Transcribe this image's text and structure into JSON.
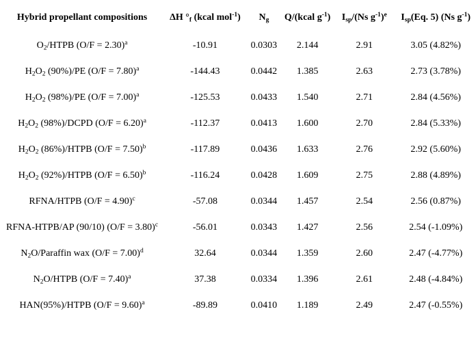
{
  "colors": {
    "background": "#ffffff",
    "text": "#000000"
  },
  "table": {
    "headers": [
      "Hybrid propellant compositions",
      "ΔH °~f~ (kcal mol^-1^)",
      "N~g~",
      "Q/(kcal g^-1^)",
      "I~sp~/(Ns g^-1^)^e^",
      "I~sp~(Eq. 5) (Ns g^-1^)"
    ],
    "rows": [
      {
        "cells": [
          "O~2~/HTPB (O/F = 2.30)^a^",
          "-10.91",
          "0.0303",
          "2.144",
          "2.91",
          "3.05 (4.82%)"
        ]
      },
      {
        "cells": [
          "H~2~O~2~ (90%)/PE (O/F = 7.80)^a^",
          "-144.43",
          "0.0442",
          "1.385",
          "2.63",
          "2.73 (3.78%)"
        ]
      },
      {
        "cells": [
          "H~2~O~2~ (98%)/PE (O/F = 7.00)^a^",
          "-125.53",
          "0.0433",
          "1.540",
          "2.71",
          "2.84 (4.56%)"
        ]
      },
      {
        "cells": [
          "H~2~O~2~ (98%)/DCPD (O/F = 6.20)^a^",
          "-112.37",
          "0.0413",
          "1.600",
          "2.70",
          "2.84 (5.33%)"
        ]
      },
      {
        "cells": [
          "H~2~O~2~ (86%)/HTPB (O/F = 7.50)^b^",
          "-117.89",
          "0.0436",
          "1.633",
          "2.76",
          "2.92 (5.60%)"
        ]
      },
      {
        "cells": [
          "H~2~O~2~ (92%)/HTPB (O/F = 6.50)^b^",
          "-116.24",
          "0.0428",
          "1.609",
          "2.75",
          "2.88 (4.89%)"
        ]
      },
      {
        "cells": [
          "RFNA/HTPB (O/F = 4.90)^c^",
          "-57.08",
          "0.0344",
          "1.457",
          "2.54",
          "2.56 (0.87%)"
        ]
      },
      {
        "cells": [
          "RFNA-HTPB/AP (90/10) (O/F = 3.80)^c^",
          "-56.01",
          "0.0343",
          "1.427",
          "2.56",
          "2.54 (-1.09%)"
        ]
      },
      {
        "cells": [
          "N~2~O/Paraffin wax (O/F = 7.00)^d^",
          "32.64",
          "0.0344",
          "1.359",
          "2.60",
          "2.47 (-4.77%)"
        ]
      },
      {
        "cells": [
          "N~2~O/HTPB (O/F = 7.40)^a^",
          "37.38",
          "0.0334",
          "1.396",
          "2.61",
          "2.48 (-4.84%)"
        ]
      },
      {
        "cells": [
          "HAN(95%)/HTPB (O/F = 9.60)^a^",
          "-89.89",
          "0.0410",
          "1.189",
          "2.49",
          "2.47 (-0.55%)"
        ]
      }
    ]
  }
}
